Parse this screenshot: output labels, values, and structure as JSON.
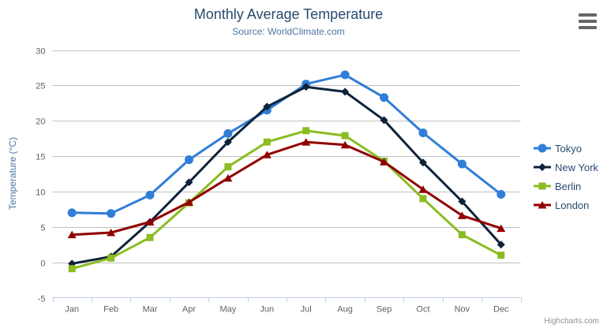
{
  "chart_data": {
    "type": "line",
    "title": "Monthly Average Temperature",
    "subtitle": "Source: WorldClimate.com",
    "ylabel": "Temperature (°C)",
    "categories": [
      "Jan",
      "Feb",
      "Mar",
      "Apr",
      "May",
      "Jun",
      "Jul",
      "Aug",
      "Sep",
      "Oct",
      "Nov",
      "Dec"
    ],
    "ylim": [
      -5,
      30
    ],
    "ytick_interval": 5,
    "grid": "horizontal",
    "legend_position": "right",
    "colors": {
      "title": "#274b6d",
      "subtitle": "#4d759e",
      "axis_label": "#606060",
      "gridline": "#C0C0C0",
      "axis_line": "#C0D0E0",
      "legend_text": "#274b6d"
    },
    "series": [
      {
        "name": "Tokyo",
        "color": "#2f7ed8",
        "marker": "circle",
        "values": [
          7.0,
          6.9,
          9.5,
          14.5,
          18.2,
          21.5,
          25.2,
          26.5,
          23.3,
          18.3,
          13.9,
          9.6
        ]
      },
      {
        "name": "New York",
        "color": "#0d233a",
        "marker": "diamond",
        "values": [
          -0.2,
          0.8,
          5.7,
          11.3,
          17.0,
          22.0,
          24.8,
          24.1,
          20.1,
          14.1,
          8.6,
          2.5
        ]
      },
      {
        "name": "Berlin",
        "color": "#8bbc21",
        "marker": "square",
        "values": [
          -0.9,
          0.6,
          3.5,
          8.4,
          13.5,
          17.0,
          18.6,
          17.9,
          14.3,
          9.0,
          3.9,
          1.0
        ]
      },
      {
        "name": "London",
        "color": "#910000",
        "marker": "triangle",
        "values": [
          3.9,
          4.2,
          5.7,
          8.5,
          11.9,
          15.2,
          17.0,
          16.6,
          14.2,
          10.3,
          6.6,
          4.8
        ]
      }
    ]
  },
  "credits": {
    "label": "Highcharts.com"
  }
}
